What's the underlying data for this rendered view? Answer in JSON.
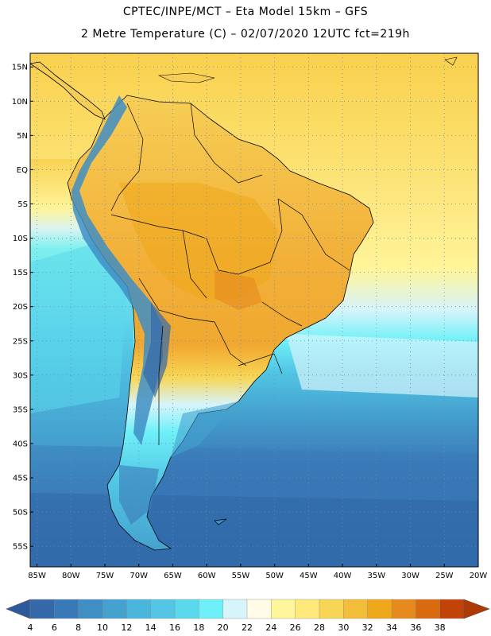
{
  "header": {
    "title_line1": "CPTEC/INPE/MCT –  Eta Model 15km – GFS",
    "title_line2": "2 Metre Temperature (C) – 02/07/2020 12UTC fct=219h"
  },
  "map": {
    "variable": "2 Metre Temperature",
    "unit": "C",
    "lat_labels": [
      "15N",
      "10N",
      "5N",
      "EQ",
      "5S",
      "10S",
      "15S",
      "20S",
      "25S",
      "30S",
      "35S",
      "40S",
      "45S",
      "50S",
      "55S"
    ],
    "lon_labels": [
      "85W",
      "80W",
      "75W",
      "70W",
      "65W",
      "60W",
      "55W",
      "50W",
      "45W",
      "40W",
      "35W",
      "30W",
      "25W",
      "20W"
    ],
    "lat_values": [
      15,
      10,
      5,
      0,
      -5,
      -10,
      -15,
      -20,
      -25,
      -30,
      -35,
      -40,
      -45,
      -50,
      -55
    ],
    "lon_values": [
      -85,
      -80,
      -75,
      -70,
      -65,
      -60,
      -55,
      -50,
      -45,
      -40,
      -35,
      -30,
      -25,
      -20
    ],
    "extent": {
      "lon_min": -86,
      "lon_max": -20,
      "lat_min": -58,
      "lat_max": 17
    }
  },
  "colorbar": {
    "labels": [
      "4",
      "6",
      "8",
      "10",
      "12",
      "14",
      "16",
      "18",
      "20",
      "22",
      "24",
      "26",
      "28",
      "30",
      "32",
      "34",
      "36",
      "38"
    ],
    "colors": [
      "#3468a8",
      "#3a79b8",
      "#3f8ec4",
      "#45a2cf",
      "#4bb6dc",
      "#52c6e4",
      "#5bd9ec",
      "#6ff0f8",
      "#d6f4fb",
      "#fffbe6",
      "#fff59a",
      "#ffe97a",
      "#f8d655",
      "#f2be3a",
      "#eea81a",
      "#e68a1e",
      "#d96a10",
      "#c14308"
    ],
    "low_arrow_color": "#2c5a9c",
    "high_arrow_color": "#b03a06"
  },
  "colors": {
    "ocean_far_north": "#ffe46f",
    "ocean_north": "#fdf08a",
    "ocean_mid": "#d6f4fb",
    "ocean_south": "#49a8d4",
    "ocean_far_south": "#2f6aab",
    "continent_hot": "#f2b13a",
    "continent_warm": "#f7ce55",
    "andes": "#3f8ec4",
    "grid": "#6c8bb3"
  }
}
